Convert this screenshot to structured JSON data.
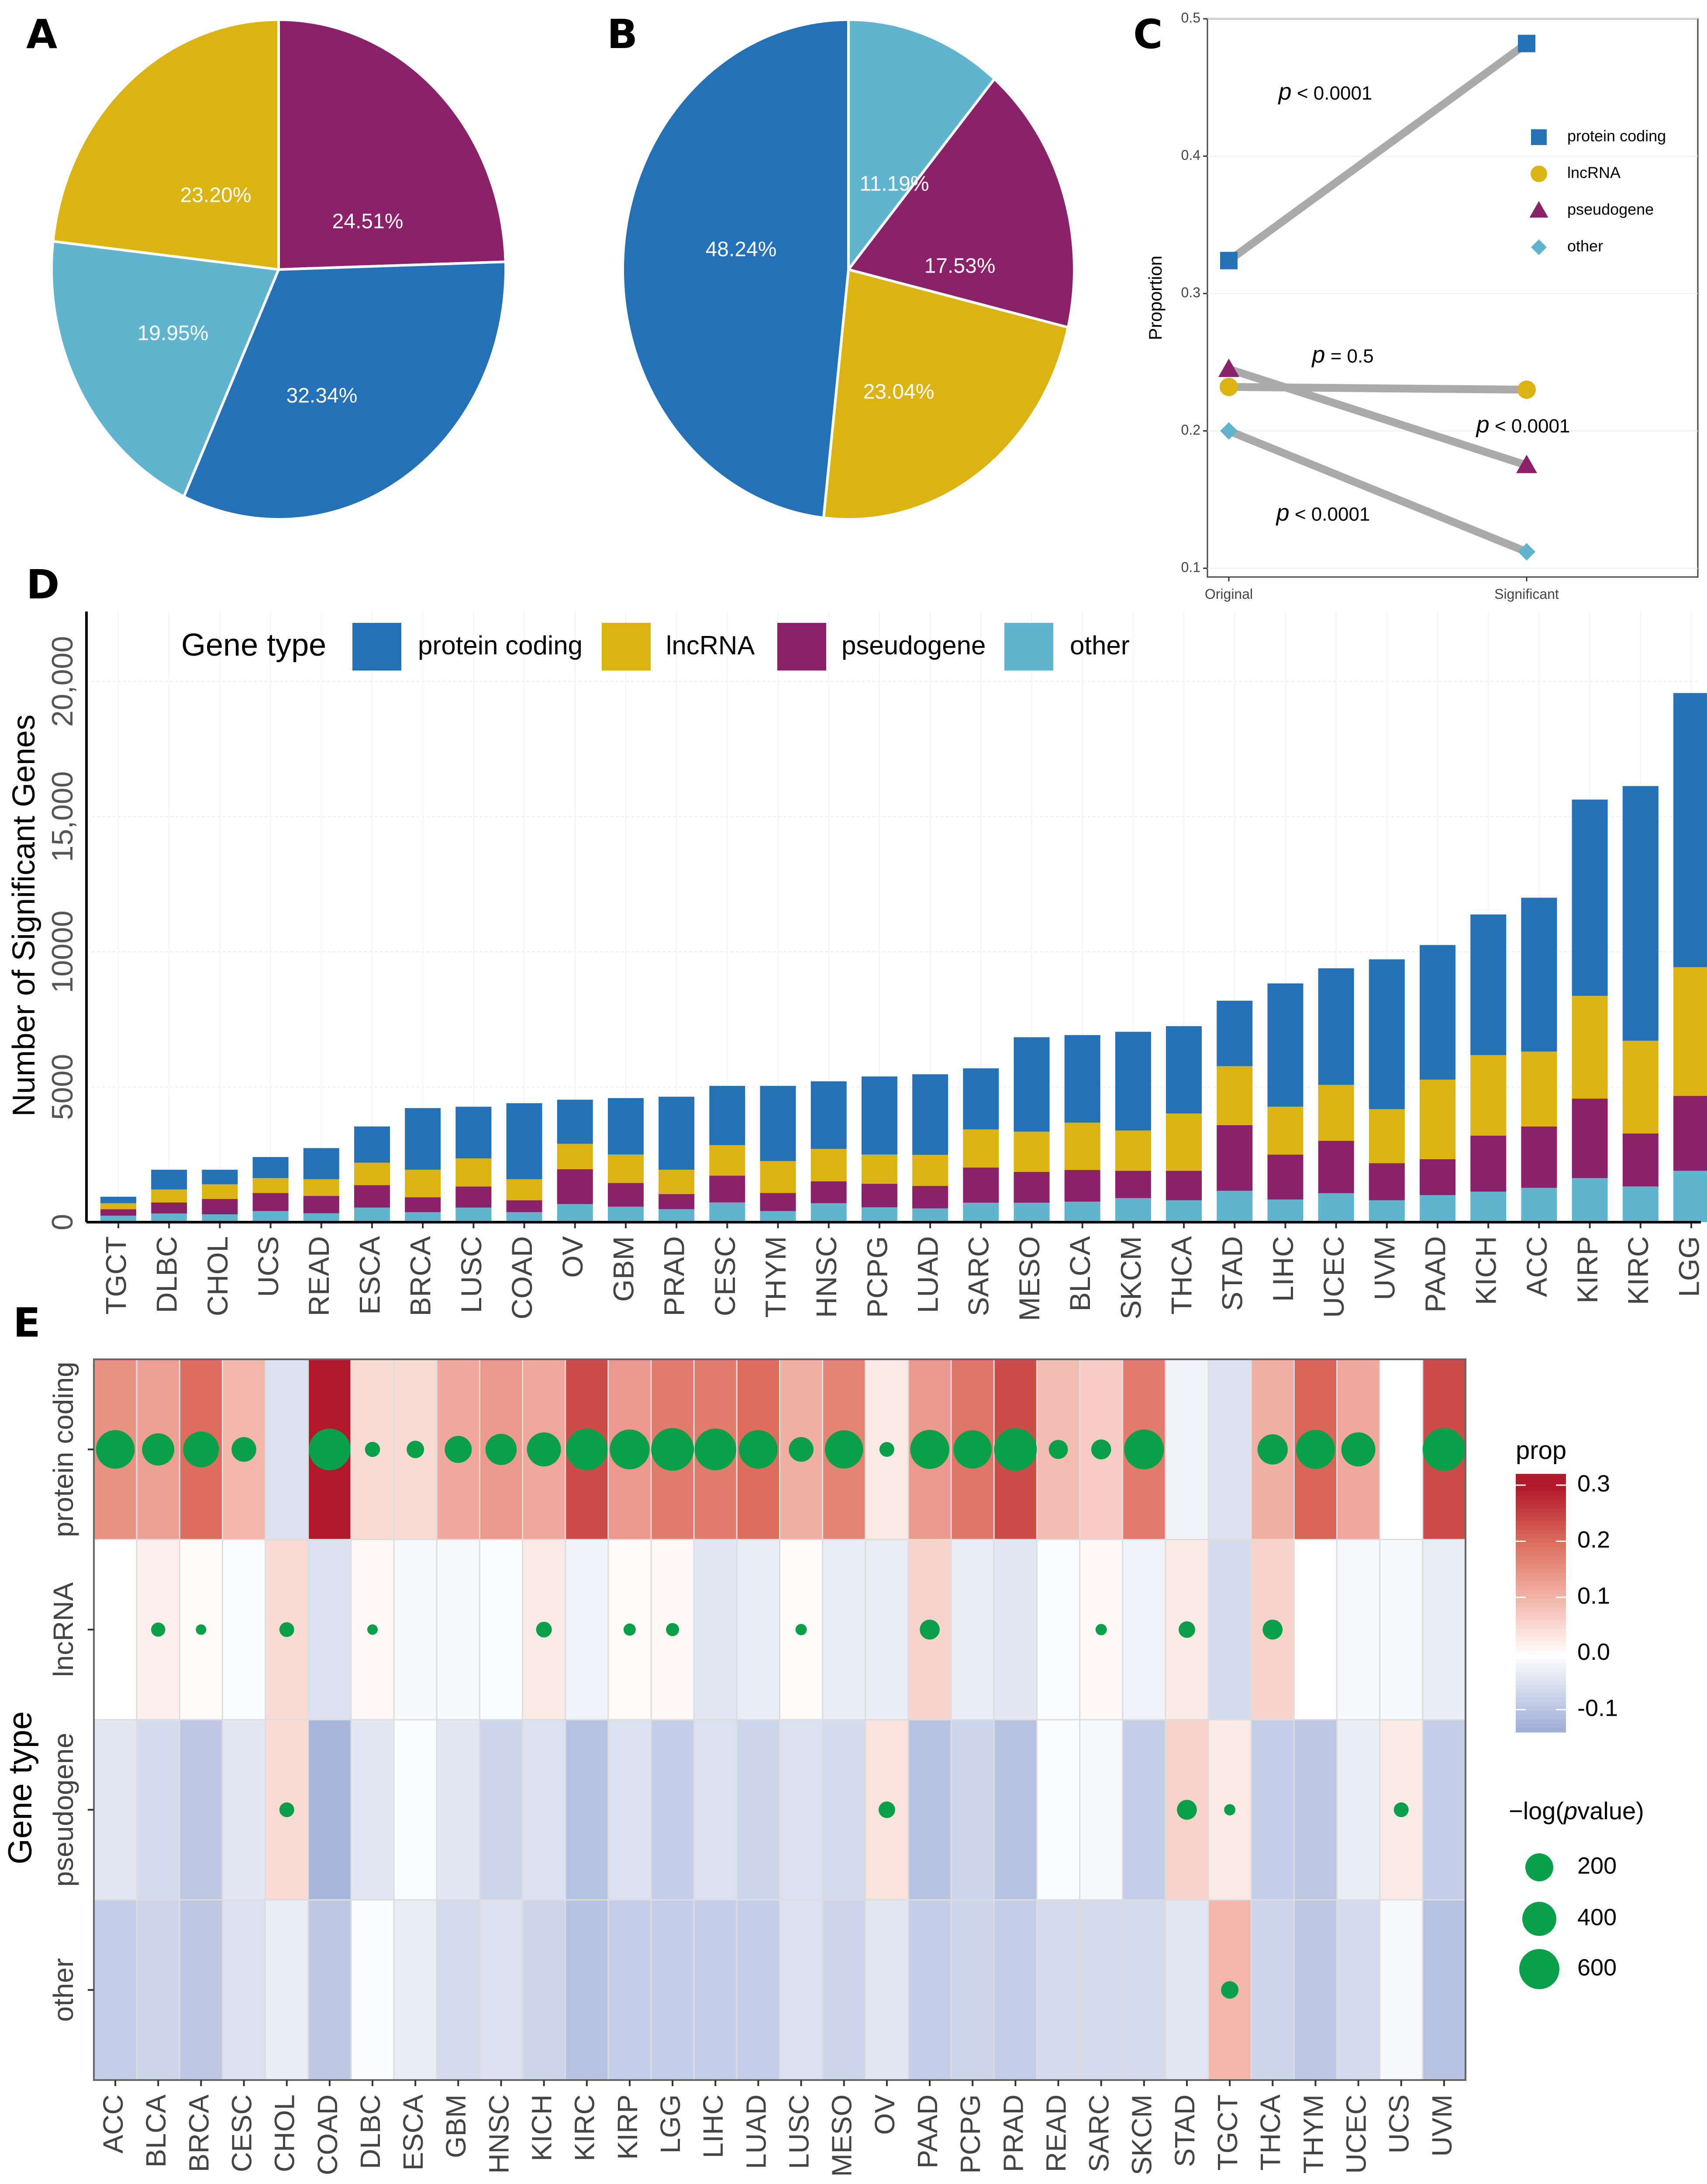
{
  "panel_labels": {
    "a": "A",
    "b": "B",
    "c": "C",
    "d": "D",
    "e": "E"
  },
  "colors": {
    "protein coding": "#2471b8",
    "lncRNA": "#dbb413",
    "pseudogene": "#8b2168",
    "other": "#61b4cd",
    "significance_dot": "#0aa04a",
    "connector_line": "#aaaaaa",
    "heat_low": "#9aaad6",
    "heat_mid": "#ffffff",
    "heat_high": "#b2182b"
  },
  "chart_data": [
    {
      "panel": "A",
      "type": "pie",
      "start": "12 o'clock, clockwise",
      "slices": [
        {
          "type": "pseudogene",
          "value": 24.51,
          "label": "24.51%"
        },
        {
          "type": "protein coding",
          "value": 32.34,
          "label": "32.34%"
        },
        {
          "type": "other",
          "value": 19.95,
          "label": "19.95%"
        },
        {
          "type": "lncRNA",
          "value": 23.2,
          "label": "23.20%"
        }
      ]
    },
    {
      "panel": "B",
      "type": "pie",
      "start": "12 o'clock, clockwise",
      "slices": [
        {
          "type": "other",
          "value": 11.19,
          "label": "11.19%"
        },
        {
          "type": "pseudogene",
          "value": 17.53,
          "label": "17.53%"
        },
        {
          "type": "lncRNA",
          "value": 23.04,
          "label": "23.04%"
        },
        {
          "type": "protein coding",
          "value": 48.24,
          "label": "48.24%"
        }
      ]
    },
    {
      "panel": "C",
      "type": "line",
      "categories": [
        "Original",
        "Significant"
      ],
      "ylabel": "Proportion",
      "ylim": [
        0.1,
        0.5
      ],
      "yticks": [
        "0.1",
        "0.2",
        "0.3",
        "0.4",
        "0.5"
      ],
      "legend_position": "top-right (inside)",
      "series": [
        {
          "name": "protein coding",
          "marker": "square",
          "values": [
            0.324,
            0.482
          ]
        },
        {
          "name": "lncRNA",
          "marker": "circle",
          "values": [
            0.232,
            0.23
          ]
        },
        {
          "name": "pseudogene",
          "marker": "triangle",
          "values": [
            0.245,
            0.175
          ]
        },
        {
          "name": "other",
          "marker": "diamond",
          "values": [
            0.2,
            0.112
          ]
        }
      ],
      "annotations": [
        {
          "series": "protein coding",
          "p": "p",
          "text": " < 0.0001"
        },
        {
          "series": "lncRNA",
          "p": "p",
          "text": " = 0.5"
        },
        {
          "series": "pseudogene",
          "p": "p",
          "text": " < 0.0001"
        },
        {
          "series": "other",
          "p": "p",
          "text": " < 0.0001"
        }
      ]
    },
    {
      "panel": "D",
      "type": "bar",
      "stacked": true,
      "ylabel": "Number of Significant Genes",
      "ylim": [
        0,
        22000
      ],
      "yticks": [
        {
          "v": 0,
          "label": "0"
        },
        {
          "v": 5000,
          "label": "5000"
        },
        {
          "v": 10000,
          "label": "10000"
        },
        {
          "v": 15000,
          "label": "15,000"
        },
        {
          "v": 20000,
          "label": "20,000"
        }
      ],
      "grid": true,
      "legend_title": "Gene type",
      "legend_position": "top-left (inside)",
      "categories": [
        "TGCT",
        "DLBC",
        "CHOL",
        "UCS",
        "READ",
        "ESCA",
        "BRCA",
        "LUSC",
        "COAD",
        "OV",
        "GBM",
        "PRAD",
        "CESC",
        "THYM",
        "HNSC",
        "PCPG",
        "LUAD",
        "SARC",
        "MESO",
        "BLCA",
        "SKCM",
        "THCA",
        "STAD",
        "LIHC",
        "UCEC",
        "UVM",
        "PAAD",
        "KICH",
        "ACC",
        "KIRP",
        "KIRC",
        "LGG"
      ],
      "series": [
        {
          "name": "protein coding",
          "values": [
            240,
            730,
            540,
            780,
            1150,
            1340,
            2280,
            1910,
            2810,
            1630,
            2090,
            2700,
            2190,
            2780,
            2500,
            2890,
            2980,
            2260,
            3490,
            3240,
            3650,
            3230,
            2420,
            4560,
            4310,
            5540,
            4980,
            5200,
            5690,
            7260,
            9420,
            10140
          ]
        },
        {
          "name": "lncRNA",
          "values": [
            220,
            480,
            540,
            550,
            620,
            830,
            1020,
            1040,
            780,
            940,
            1050,
            900,
            1130,
            1180,
            1200,
            1080,
            1150,
            1410,
            1490,
            1750,
            1490,
            2120,
            2180,
            1770,
            2070,
            2000,
            2940,
            2980,
            2770,
            3800,
            3430,
            4760
          ]
        },
        {
          "name": "pseudogene",
          "values": [
            240,
            410,
            570,
            670,
            640,
            830,
            550,
            780,
            440,
            1290,
            880,
            560,
            990,
            670,
            810,
            870,
            830,
            1300,
            1140,
            1170,
            1010,
            1090,
            2430,
            1660,
            1940,
            1370,
            1330,
            2070,
            2270,
            2940,
            1960,
            2770
          ]
        },
        {
          "name": "other",
          "values": [
            240,
            320,
            290,
            410,
            330,
            540,
            370,
            540,
            370,
            670,
            570,
            480,
            730,
            410,
            700,
            550,
            510,
            720,
            720,
            760,
            890,
            810,
            1160,
            840,
            1070,
            810,
            1000,
            1130,
            1270,
            1630,
            1320,
            1900
          ]
        }
      ]
    },
    {
      "panel": "E",
      "type": "heatmap",
      "ylabel": "Gene type",
      "rows": [
        "protein coding",
        "lncRNA",
        "pseudogene",
        "other"
      ],
      "columns": [
        "ACC",
        "BLCA",
        "BRCA",
        "CESC",
        "CHOL",
        "COAD",
        "DLBC",
        "ESCA",
        "GBM",
        "HNSC",
        "KICH",
        "KIRC",
        "KIRP",
        "LGG",
        "LIHC",
        "LUAD",
        "LUSC",
        "MESO",
        "OV",
        "PAAD",
        "PCPG",
        "PRAD",
        "READ",
        "SARC",
        "SKCM",
        "STAD",
        "TGCT",
        "THCA",
        "THYM",
        "UCEC",
        "UCS",
        "UVM"
      ],
      "fill_legend": {
        "title": "prop",
        "ticks": [
          {
            "v": 0.3,
            "label": "0.3"
          },
          {
            "v": 0.2,
            "label": "0.2"
          },
          {
            "v": 0.1,
            "label": "0.1"
          },
          {
            "v": 0.0,
            "label": "0.0"
          },
          {
            "v": -0.1,
            "label": "-0.1"
          }
        ],
        "range": [
          -0.14,
          0.32
        ]
      },
      "size_legend": {
        "title_pre": "−log(",
        "title_italic": "p",
        "title_post": "value)",
        "values": [
          200,
          400,
          600
        ],
        "labels": [
          "200",
          "400",
          "600"
        ]
      },
      "prop": [
        [
          0.15,
          0.13,
          0.2,
          0.1,
          -0.05,
          0.3,
          0.05,
          0.05,
          0.12,
          0.14,
          0.12,
          0.24,
          0.14,
          0.18,
          0.18,
          0.2,
          0.11,
          0.17,
          0.03,
          0.14,
          0.19,
          0.24,
          0.09,
          0.07,
          0.18,
          -0.02,
          -0.05,
          0.11,
          0.21,
          0.12,
          0.0,
          0.24
        ],
        [
          0.0,
          0.02,
          0.005,
          -0.005,
          0.05,
          -0.05,
          0.01,
          -0.01,
          -0.01,
          -0.005,
          0.03,
          -0.02,
          0.005,
          0.01,
          -0.04,
          -0.03,
          0.005,
          -0.03,
          -0.03,
          0.06,
          -0.03,
          -0.04,
          -0.005,
          0.01,
          -0.02,
          0.03,
          -0.06,
          0.06,
          0.0,
          -0.01,
          -0.01,
          -0.03
        ],
        [
          -0.04,
          -0.06,
          -0.09,
          -0.04,
          0.05,
          -0.12,
          -0.04,
          -0.005,
          -0.04,
          -0.07,
          -0.05,
          -0.1,
          -0.05,
          -0.08,
          -0.05,
          -0.07,
          -0.05,
          -0.06,
          0.04,
          -0.1,
          -0.07,
          -0.1,
          -0.005,
          -0.01,
          -0.08,
          0.06,
          0.03,
          -0.08,
          -0.09,
          -0.03,
          0.03,
          -0.08
        ],
        [
          -0.08,
          -0.07,
          -0.09,
          -0.05,
          -0.03,
          -0.09,
          -0.005,
          -0.03,
          -0.06,
          -0.05,
          -0.07,
          -0.1,
          -0.08,
          -0.08,
          -0.08,
          -0.08,
          -0.05,
          -0.07,
          -0.04,
          -0.08,
          -0.07,
          -0.08,
          -0.06,
          -0.06,
          -0.06,
          -0.04,
          0.1,
          -0.07,
          -0.09,
          -0.06,
          -0.01,
          -0.1
        ]
      ],
      "neg_log_p": [
        [
          490,
          340,
          420,
          200,
          null,
          570,
          75,
          100,
          240,
          320,
          380,
          570,
          520,
          600,
          570,
          490,
          200,
          480,
          72,
          500,
          480,
          600,
          120,
          130,
          520,
          null,
          null,
          300,
          500,
          380,
          null,
          600
        ],
        [
          null,
          66,
          36,
          null,
          72,
          null,
          36,
          null,
          null,
          null,
          81,
          null,
          49,
          56,
          null,
          null,
          42,
          null,
          null,
          130,
          null,
          null,
          null,
          42,
          null,
          90,
          null,
          130,
          null,
          null,
          null,
          null
        ],
        [
          null,
          null,
          null,
          null,
          72,
          null,
          null,
          null,
          null,
          null,
          null,
          null,
          null,
          null,
          null,
          null,
          null,
          null,
          90,
          null,
          null,
          null,
          null,
          null,
          null,
          130,
          42,
          null,
          null,
          null,
          72,
          null
        ],
        [
          null,
          null,
          null,
          null,
          null,
          null,
          null,
          null,
          null,
          null,
          null,
          null,
          null,
          null,
          null,
          null,
          null,
          null,
          null,
          null,
          null,
          null,
          null,
          null,
          null,
          null,
          100,
          null,
          null,
          null,
          null,
          null
        ]
      ]
    }
  ]
}
